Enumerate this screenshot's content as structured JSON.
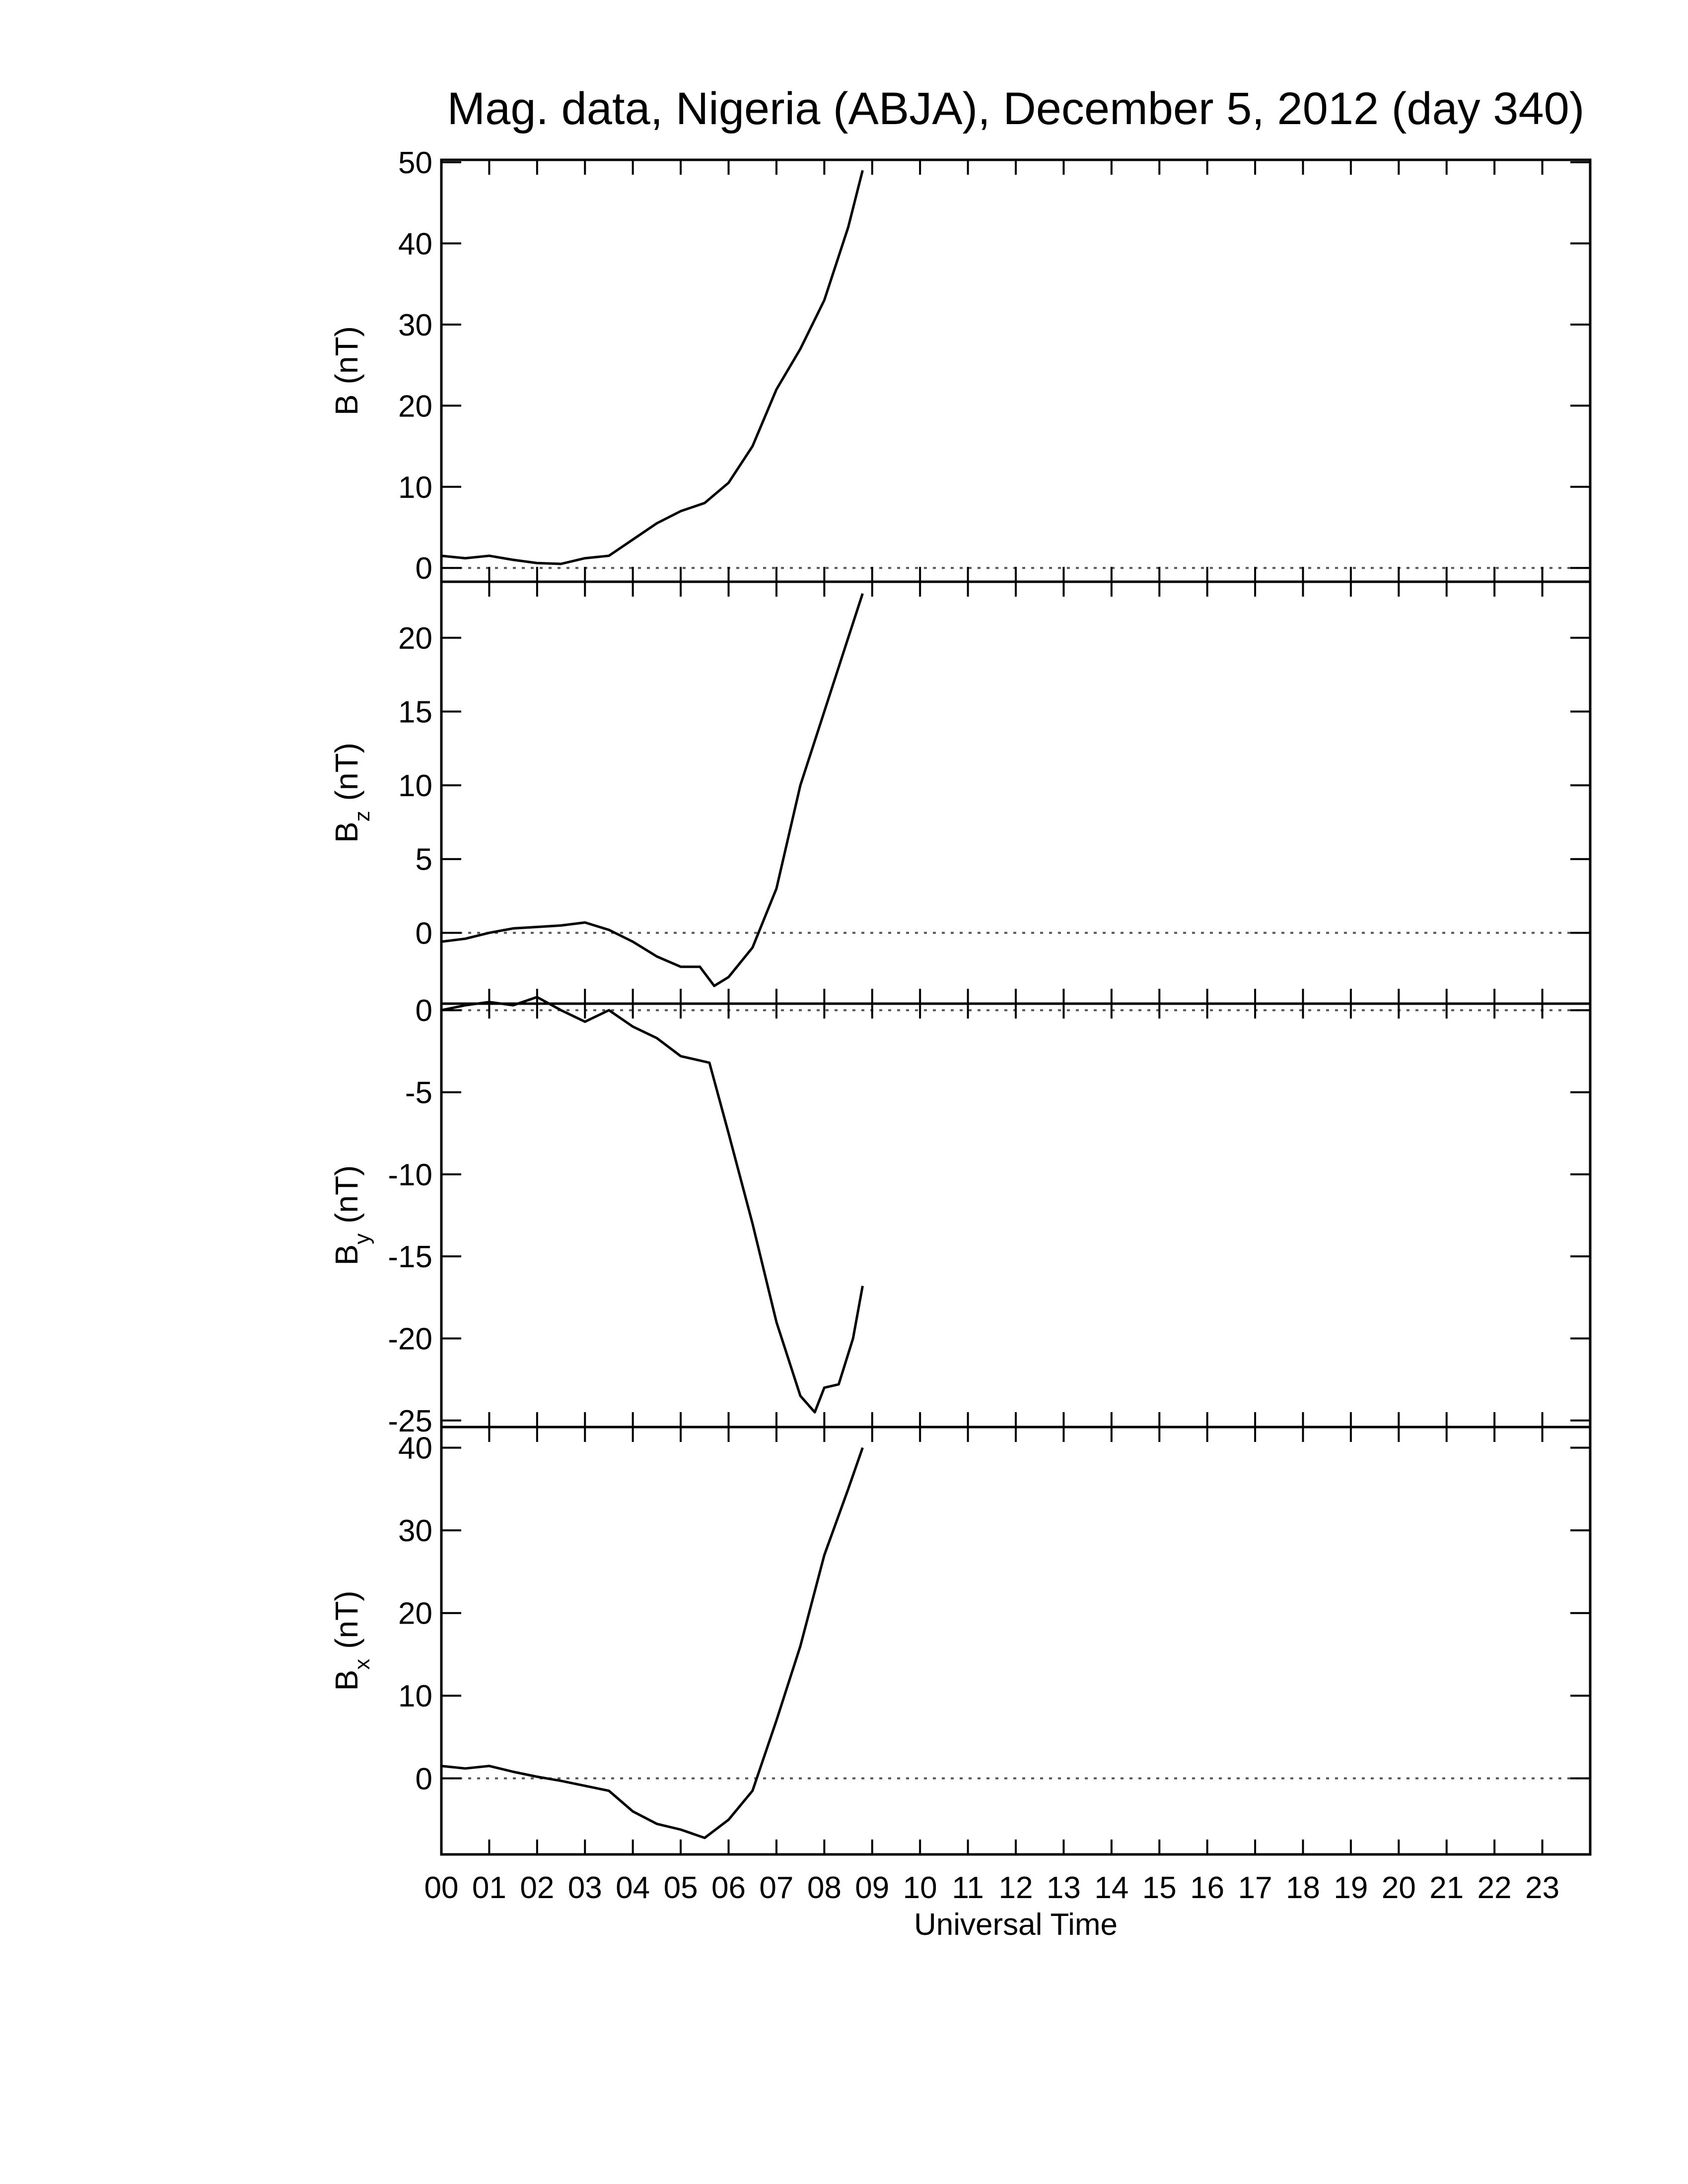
{
  "title": "Mag. data, Nigeria (ABJA), December 5, 2012 (day 340)",
  "chart_data": [
    {
      "type": "line",
      "ylabel": "B",
      "ylabel_unit": "(nT)",
      "color": "#000000",
      "hline": 0,
      "xlim": [
        0,
        24
      ],
      "ylim": [
        -1.7,
        50.3
      ],
      "yticks": [
        0,
        10,
        20,
        30,
        40,
        50
      ],
      "x": [
        0,
        0.5,
        1,
        1.5,
        2,
        2.5,
        3,
        3.5,
        4,
        4.5,
        5,
        5.5,
        6,
        6.5,
        7,
        7.5,
        8,
        8.5,
        8.8
      ],
      "values": [
        1.5,
        1.2,
        1.5,
        1.0,
        0.6,
        0.5,
        1.2,
        1.5,
        3.5,
        5.5,
        7,
        8,
        10.5,
        15,
        22,
        27,
        33,
        42,
        49
      ]
    },
    {
      "type": "line",
      "ylabel": "B",
      "ylabel_sub": "z",
      "ylabel_unit": "(nT)",
      "color": "#000000",
      "hline": 0,
      "xlim": [
        0,
        24
      ],
      "ylim": [
        -4.8,
        23.8
      ],
      "yticks": [
        0,
        5,
        10,
        15,
        20
      ],
      "x": [
        0,
        0.5,
        1,
        1.5,
        2,
        2.5,
        3,
        3.5,
        4,
        4.5,
        5,
        5.4,
        5.7,
        6,
        6.5,
        7,
        7.5,
        8,
        8.5,
        8.8
      ],
      "values": [
        -0.6,
        -0.4,
        0,
        0.3,
        0.4,
        0.5,
        0.7,
        0.2,
        -0.6,
        -1.6,
        -2.3,
        -2.3,
        -3.6,
        -3.0,
        -1.0,
        3,
        10,
        15,
        20,
        23
      ]
    },
    {
      "type": "line",
      "ylabel": "B",
      "ylabel_sub": "y",
      "ylabel_unit": "(nT)",
      "color": "#000000",
      "hline": 0,
      "xlim": [
        0,
        24
      ],
      "ylim": [
        -25.4,
        0.4
      ],
      "yticks": [
        -25,
        -20,
        -15,
        -10,
        -5,
        0
      ],
      "x": [
        0,
        0.5,
        1,
        1.5,
        2,
        2.5,
        3,
        3.5,
        4,
        4.5,
        5,
        5.6,
        6,
        6.5,
        7,
        7.5,
        7.8,
        8,
        8.3,
        8.6,
        8.8
      ],
      "values": [
        0,
        0.3,
        0.5,
        0.3,
        0.8,
        0,
        -0.7,
        0,
        -1.0,
        -1.7,
        -2.8,
        -3.2,
        -7.5,
        -13,
        -19,
        -23.5,
        -24.5,
        -23,
        -22.8,
        -20,
        -16.8
      ]
    },
    {
      "type": "line",
      "ylabel": "B",
      "ylabel_sub": "x",
      "ylabel_unit": "(nT)",
      "color": "#000000",
      "hline": 0,
      "xlim": [
        0,
        24
      ],
      "ylim": [
        -9.2,
        42.5
      ],
      "yticks": [
        0,
        10,
        20,
        30,
        40
      ],
      "xlabel": "Universal Time",
      "xticks": [
        {
          "value": 0,
          "label": "00"
        },
        {
          "value": 1,
          "label": "01"
        },
        {
          "value": 2,
          "label": "02"
        },
        {
          "value": 3,
          "label": "03"
        },
        {
          "value": 4,
          "label": "04"
        },
        {
          "value": 5,
          "label": "05"
        },
        {
          "value": 6,
          "label": "06"
        },
        {
          "value": 7,
          "label": "07"
        },
        {
          "value": 8,
          "label": "08"
        },
        {
          "value": 9,
          "label": "09"
        },
        {
          "value": 10,
          "label": "10"
        },
        {
          "value": 11,
          "label": "11"
        },
        {
          "value": 12,
          "label": "12"
        },
        {
          "value": 13,
          "label": "13"
        },
        {
          "value": 14,
          "label": "14"
        },
        {
          "value": 15,
          "label": "15"
        },
        {
          "value": 16,
          "label": "16"
        },
        {
          "value": 17,
          "label": "17"
        },
        {
          "value": 18,
          "label": "18"
        },
        {
          "value": 19,
          "label": "19"
        },
        {
          "value": 20,
          "label": "20"
        },
        {
          "value": 21,
          "label": "21"
        },
        {
          "value": 22,
          "label": "22"
        },
        {
          "value": 23,
          "label": "23"
        }
      ],
      "x": [
        0,
        0.5,
        1,
        1.5,
        2,
        2.5,
        3,
        3.5,
        4,
        4.5,
        5,
        5.5,
        6,
        6.5,
        7,
        7.5,
        8,
        8.5,
        8.8
      ],
      "values": [
        1.5,
        1.2,
        1.5,
        0.8,
        0.2,
        -0.3,
        -0.9,
        -1.5,
        -4,
        -5.5,
        -6.2,
        -7.2,
        -5,
        -1.5,
        7,
        16,
        27,
        35,
        40
      ]
    }
  ]
}
